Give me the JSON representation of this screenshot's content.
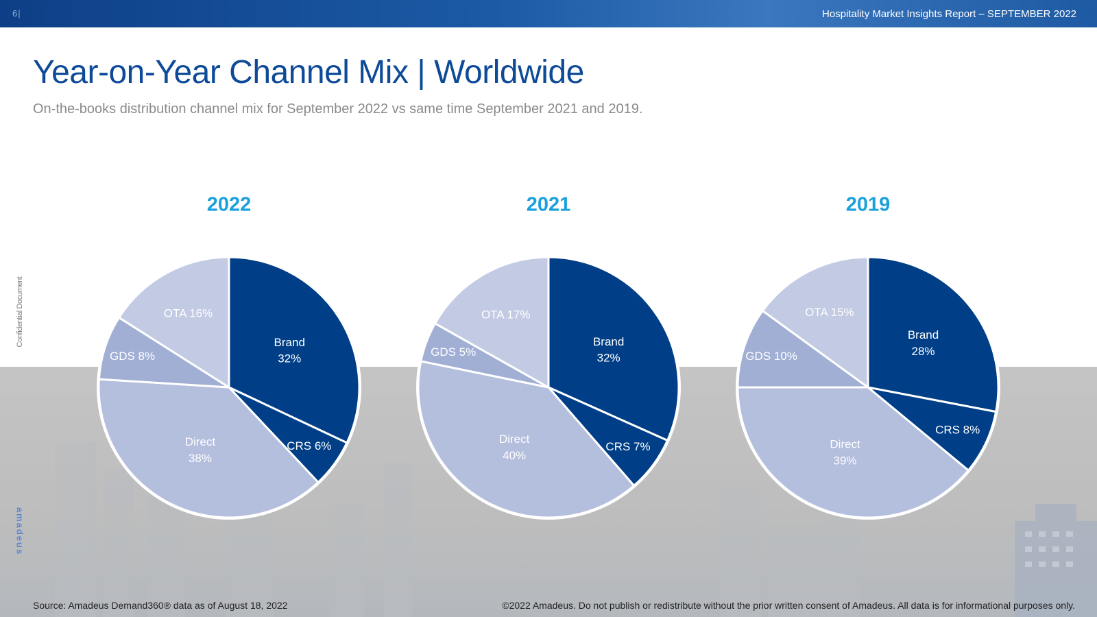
{
  "header": {
    "page_number": "6|",
    "report_title": "Hospitality Market Insights Report – SEPTEMBER 2022"
  },
  "title": "Year-on-Year Channel Mix | Worldwide",
  "subtitle": "On-the-books distribution channel mix for September 2022 vs same time September 2021 and 2019.",
  "side": {
    "confidential": "Confidential Document",
    "logo": "amadeus"
  },
  "footer": {
    "source": "Source: Amadeus Demand360® data as of August 18, 2022",
    "copyright": "©2022 Amadeus. Do not publish or redistribute without the prior written consent of Amadeus. All data is for informational purposes only."
  },
  "colors": {
    "Brand": "#003f87",
    "CRS": "#003f87",
    "Direct": "#b4bedd",
    "GDS": "#a1afd5",
    "OTA": "#c3cae4",
    "label_dark": "#ffffff",
    "label_light": "#ffffff",
    "year": "#1aa0dc"
  },
  "chart_data": [
    {
      "type": "pie",
      "title": "2022",
      "categories": [
        "Brand",
        "CRS",
        "Direct",
        "GDS",
        "OTA"
      ],
      "values": [
        32,
        6,
        38,
        8,
        16
      ],
      "labels": [
        "Brand\n32%",
        "CRS 6%",
        "Direct\n38%",
        "GDS 8%",
        "OTA 16%"
      ]
    },
    {
      "type": "pie",
      "title": "2021",
      "categories": [
        "Brand",
        "CRS",
        "Direct",
        "GDS",
        "OTA"
      ],
      "values": [
        32,
        7,
        40,
        5,
        17
      ],
      "labels": [
        "Brand\n32%",
        "CRS 7%",
        "Direct\n40%",
        "GDS 5%",
        "OTA 17%"
      ]
    },
    {
      "type": "pie",
      "title": "2019",
      "categories": [
        "Brand",
        "CRS",
        "Direct",
        "GDS",
        "OTA"
      ],
      "values": [
        28,
        8,
        39,
        10,
        15
      ],
      "labels": [
        "Brand\n28%",
        "CRS 8%",
        "Direct\n39%",
        "GDS 10%",
        "OTA 15%"
      ]
    }
  ]
}
